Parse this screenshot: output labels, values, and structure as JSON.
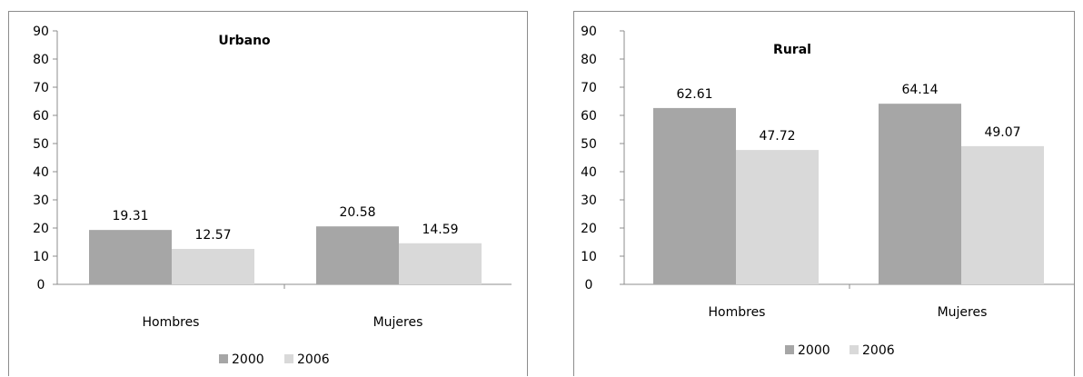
{
  "chart_data": [
    {
      "type": "bar",
      "title": "Urbano",
      "categories": [
        "Hombres",
        "Mujeres"
      ],
      "series": [
        {
          "name": "2000",
          "values": [
            19.31,
            20.58
          ],
          "color": "#a6a6a6"
        },
        {
          "name": "2006",
          "values": [
            12.57,
            14.59
          ],
          "color": "#d9d9d9"
        }
      ],
      "data_labels": [
        [
          "19.31",
          "20.58"
        ],
        [
          "12.57",
          "14.59"
        ]
      ],
      "yticks": [
        "0",
        "10",
        "20",
        "30",
        "40",
        "50",
        "60",
        "70",
        "80",
        "90"
      ],
      "ylim": [
        0,
        90
      ],
      "grid": false,
      "legend": "bottom"
    },
    {
      "type": "bar",
      "title": "Rural",
      "categories": [
        "Hombres",
        "Mujeres"
      ],
      "series": [
        {
          "name": "2000",
          "values": [
            62.61,
            64.14
          ],
          "color": "#a6a6a6"
        },
        {
          "name": "2006",
          "values": [
            47.72,
            49.07
          ],
          "color": "#d9d9d9"
        }
      ],
      "data_labels": [
        [
          "62.61",
          "64.14"
        ],
        [
          "47.72",
          "49.07"
        ]
      ],
      "yticks": [
        "0",
        "10",
        "20",
        "30",
        "40",
        "50",
        "60",
        "70",
        "80",
        "90"
      ],
      "ylim": [
        0,
        90
      ],
      "grid": false,
      "legend": "bottom"
    }
  ]
}
